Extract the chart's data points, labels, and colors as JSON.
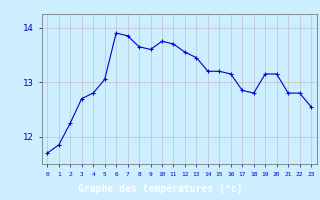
{
  "x": [
    0,
    1,
    2,
    3,
    4,
    5,
    6,
    7,
    8,
    9,
    10,
    11,
    12,
    13,
    14,
    15,
    16,
    17,
    18,
    19,
    20,
    21,
    22,
    23
  ],
  "y": [
    11.7,
    11.85,
    12.25,
    12.7,
    12.8,
    13.05,
    13.9,
    13.85,
    13.65,
    13.6,
    13.75,
    13.7,
    13.55,
    13.45,
    13.2,
    13.2,
    13.15,
    12.85,
    12.8,
    13.15,
    13.15,
    12.8,
    12.8,
    12.55
  ],
  "xlabel": "Graphe des températures (°c)",
  "ylim": [
    11.5,
    14.25
  ],
  "xlim": [
    -0.5,
    23.5
  ],
  "yticks": [
    12,
    13,
    14
  ],
  "ytick_labels": [
    "12",
    "13",
    "14"
  ],
  "xticks": [
    0,
    1,
    2,
    3,
    4,
    5,
    6,
    7,
    8,
    9,
    10,
    11,
    12,
    13,
    14,
    15,
    16,
    17,
    18,
    19,
    20,
    21,
    22,
    23
  ],
  "xtick_labels": [
    "0",
    "1",
    "2",
    "3",
    "4",
    "5",
    "6",
    "7",
    "8",
    "9",
    "10",
    "11",
    "12",
    "13",
    "14",
    "15",
    "16",
    "17",
    "18",
    "19",
    "20",
    "21",
    "22",
    "23"
  ],
  "line_color": "#0000cc",
  "marker": "+",
  "bg_color": "#cceeff",
  "grid_color": "#bbbbbb",
  "xlabel_color": "#ffffff",
  "xlabel_bg": "#0000cc",
  "tick_color": "#0000cc",
  "spine_color": "#666666"
}
